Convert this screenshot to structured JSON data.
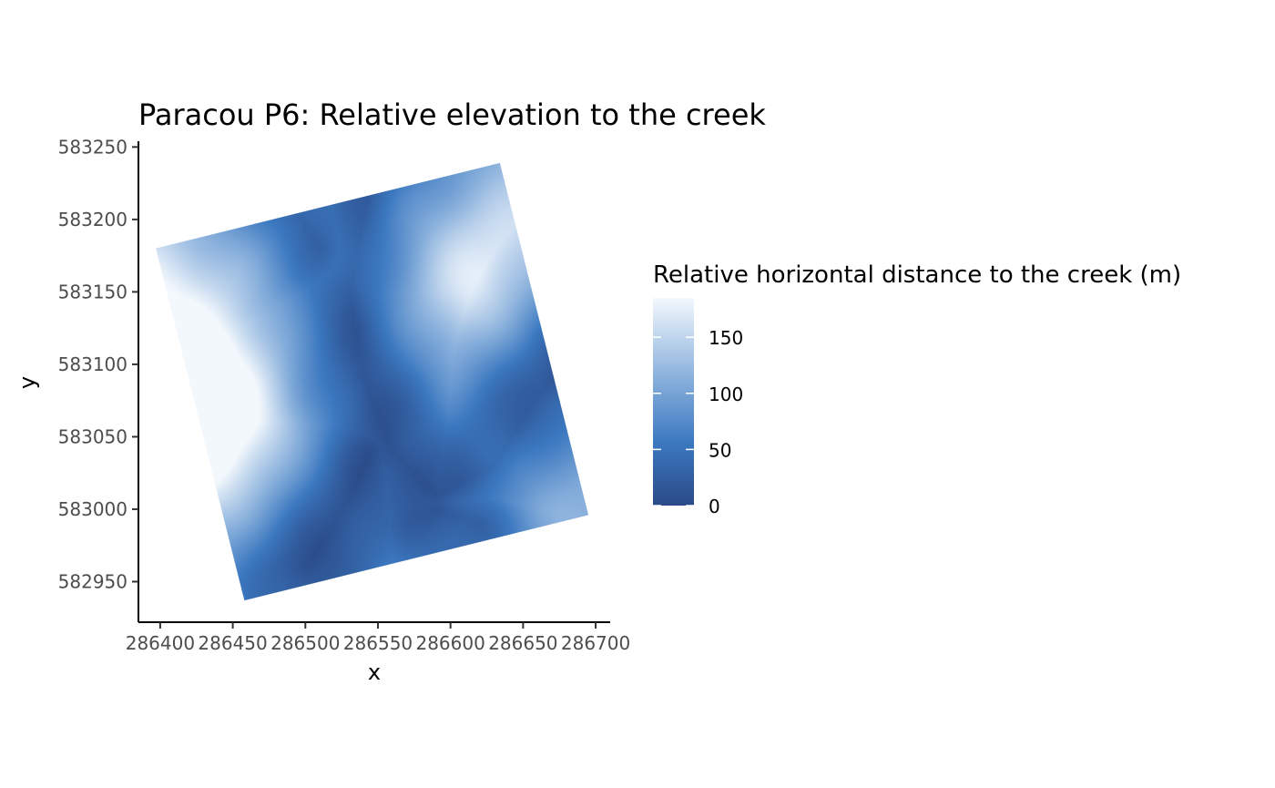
{
  "chart_data": {
    "type": "heatmap",
    "title": "Paracou P6: Relative elevation to the creek",
    "xlabel": "x",
    "ylabel": "y",
    "xlim": [
      286385,
      286710
    ],
    "ylim": [
      582922,
      583254
    ],
    "x_ticks": [
      286400,
      286450,
      286500,
      286550,
      286600,
      286650,
      286700
    ],
    "y_ticks": [
      582950,
      583000,
      583050,
      583100,
      583150,
      583200,
      583250
    ],
    "plot_outline": [
      [
        286397,
        583180
      ],
      [
        286634,
        583239
      ],
      [
        286695,
        582996
      ],
      [
        286458,
        582937
      ]
    ],
    "legend": {
      "title": "Relative horizontal distance to the creek (m)",
      "position": "right",
      "range": [
        0,
        185
      ],
      "ticks": [
        0,
        50,
        100,
        150
      ],
      "low_color": "#2b4a87",
      "mid_color": "#3b78c0",
      "high_color": "#f3f8fd"
    },
    "grid": false,
    "gradient_features": {
      "high_points": [
        [
          286440,
          583090,
          182
        ],
        [
          286420,
          583020,
          165
        ],
        [
          286400,
          583150,
          140
        ],
        [
          286470,
          583180,
          120
        ],
        [
          286600,
          583140,
          135
        ],
        [
          286630,
          583170,
          120
        ],
        [
          286660,
          583010,
          150
        ],
        [
          286470,
          583050,
          120
        ],
        [
          286580,
          583200,
          110
        ]
      ],
      "low_channels": [
        [
          [
            286545,
            583230
          ],
          [
            286530,
            583150
          ],
          [
            286540,
            583090
          ],
          [
            286560,
            583040
          ],
          [
            286590,
            583010
          ],
          [
            286630,
            583030
          ],
          [
            286660,
            583080
          ],
          [
            286680,
            583100
          ]
        ],
        [
          [
            286545,
            583040
          ],
          [
            286520,
            582990
          ],
          [
            286500,
            582960
          ]
        ],
        [
          [
            286510,
            583180
          ],
          [
            286490,
            583210
          ]
        ],
        [
          [
            286590,
            583000
          ],
          [
            286620,
            582990
          ]
        ]
      ]
    }
  }
}
